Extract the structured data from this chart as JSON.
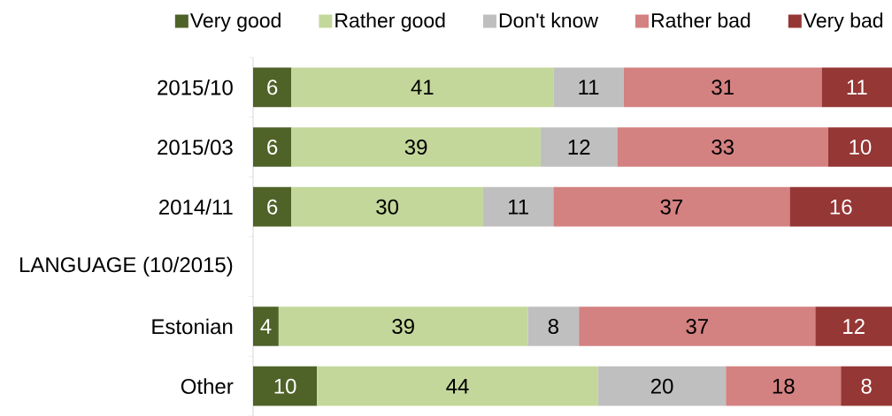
{
  "chart_data": {
    "type": "bar",
    "orientation": "horizontal",
    "stacked": true,
    "data_labels": true,
    "legend": "top",
    "tick_labels": "y",
    "categories": [
      "2015/10",
      "2015/03",
      "2014/11",
      "LANGUAGE (10/2015)",
      "Estonian",
      "Other"
    ],
    "xlim": [
      0,
      100
    ],
    "series": [
      {
        "name": "Very good",
        "color": "#4f6228",
        "values": [
          6,
          6,
          6,
          null,
          4,
          10
        ]
      },
      {
        "name": "Rather good",
        "color": "#c4d79b",
        "values": [
          41,
          39,
          30,
          null,
          39,
          44
        ]
      },
      {
        "name": "Don't know",
        "color": "#bfbfbf",
        "values": [
          11,
          12,
          11,
          null,
          8,
          20
        ]
      },
      {
        "name": "Rather bad",
        "color": "#d48181",
        "values": [
          31,
          33,
          37,
          null,
          37,
          18
        ]
      },
      {
        "name": "Very bad",
        "color": "#953735",
        "values": [
          11,
          10,
          16,
          null,
          12,
          8
        ]
      }
    ]
  }
}
